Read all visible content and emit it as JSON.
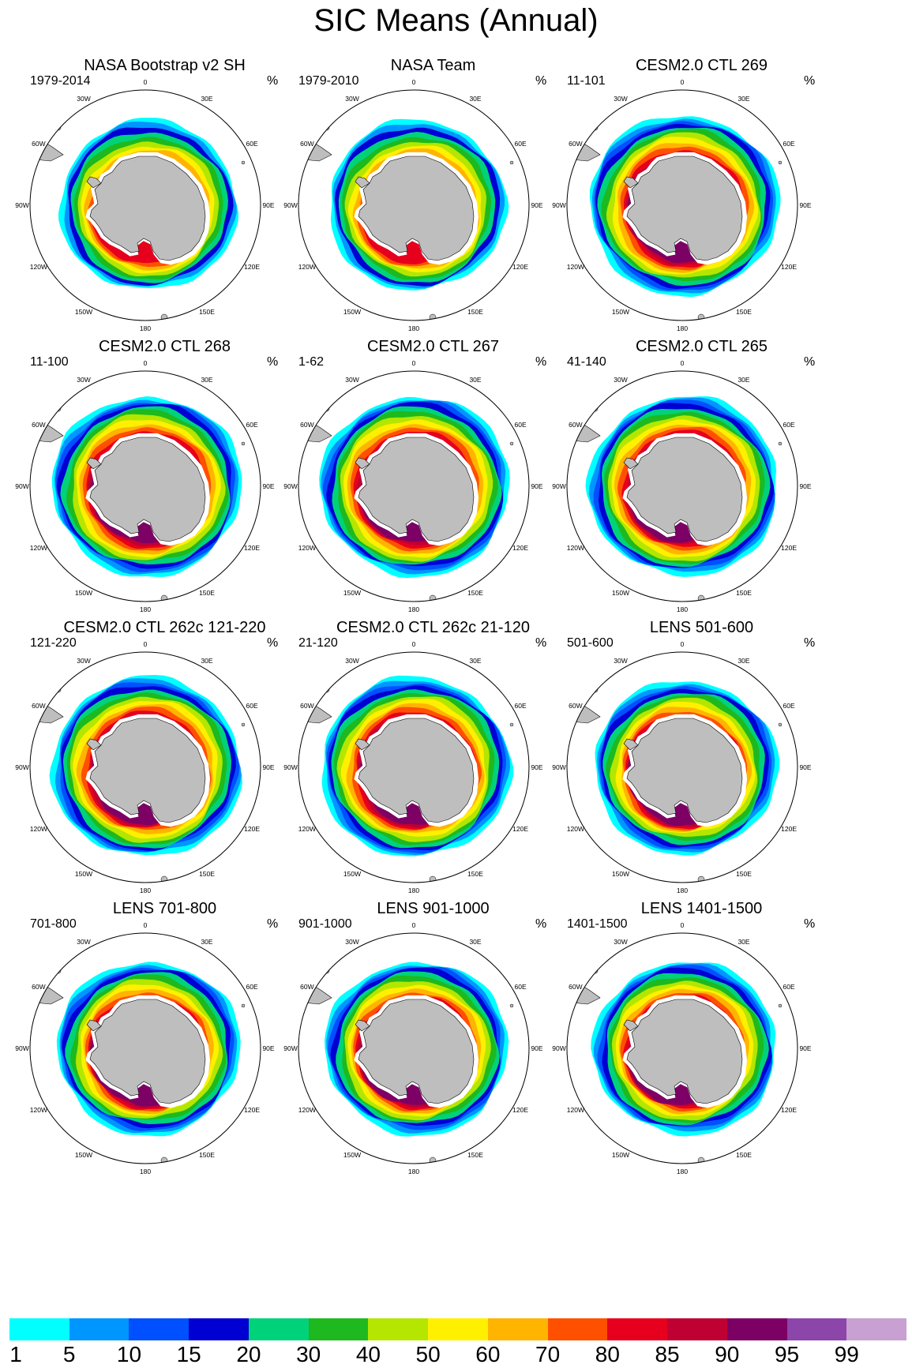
{
  "title": "SIC Means (Annual)",
  "unit_label": "%",
  "longitude_labels": [
    "0",
    "30E",
    "60E",
    "90E",
    "120E",
    "150E",
    "180",
    "150W",
    "120W",
    "90W",
    "60W",
    "30W"
  ],
  "panels": [
    {
      "title": "NASA Bootstrap v2 SH",
      "period": "1979-2014",
      "style": "obs1"
    },
    {
      "title": "NASA Team",
      "period": "1979-2010",
      "style": "obs2"
    },
    {
      "title": "CESM2.0 CTL 269",
      "period": "11-101",
      "style": "cesm"
    },
    {
      "title": "CESM2.0 CTL 268",
      "period": "11-100",
      "style": "cesm"
    },
    {
      "title": "CESM2.0 CTL 267",
      "period": "1-62",
      "style": "cesm"
    },
    {
      "title": "CESM2.0 CTL 265",
      "period": "41-140",
      "style": "cesm"
    },
    {
      "title": "CESM2.0 CTL 262c 121-220",
      "period": "121-220",
      "style": "cesm"
    },
    {
      "title": "CESM2.0 CTL 262c 21-120",
      "period": "21-120",
      "style": "cesm"
    },
    {
      "title": "LENS 501-600",
      "period": "501-600",
      "style": "lens"
    },
    {
      "title": "LENS 701-800",
      "period": "701-800",
      "style": "lens"
    },
    {
      "title": "LENS 901-1000",
      "period": "901-1000",
      "style": "lens"
    },
    {
      "title": "LENS 1401-1500",
      "period": "1401-1500",
      "style": "lens"
    }
  ],
  "colorbar": {
    "levels": [
      "1",
      "5",
      "10",
      "15",
      "20",
      "30",
      "40",
      "50",
      "60",
      "70",
      "80",
      "85",
      "90",
      "95",
      "99"
    ],
    "colors": [
      "#00ffff",
      "#0096ff",
      "#0050ff",
      "#0000d2",
      "#00d27a",
      "#1eb91e",
      "#b4e600",
      "#fff000",
      "#ffb400",
      "#ff5000",
      "#e6001e",
      "#be0032",
      "#7d0064",
      "#8c46aa",
      "#c8a0d2"
    ]
  },
  "colors": {
    "land": "#bebebe",
    "ocean": "#ffffff",
    "coastline": "#000000"
  }
}
